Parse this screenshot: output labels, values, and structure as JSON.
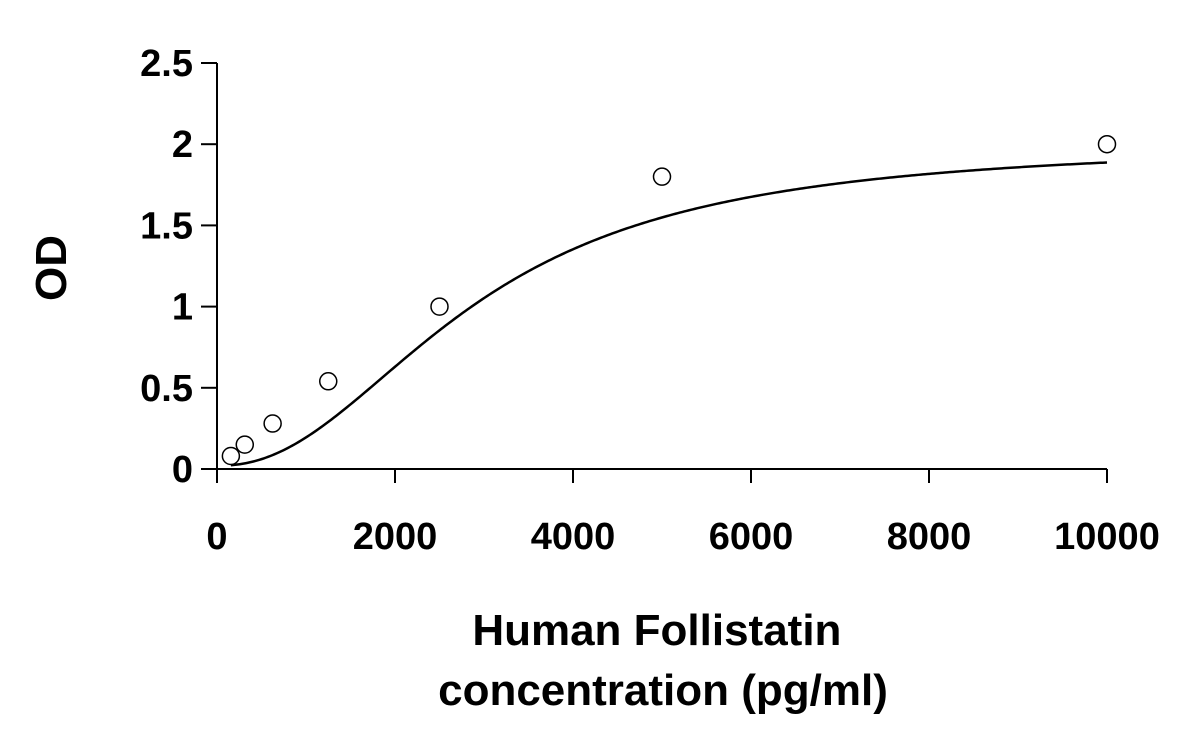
{
  "chart_data": {
    "type": "scatter",
    "title": "",
    "xlabel_lines": [
      "Human Follistatin",
      "concentration (pg/ml)"
    ],
    "ylabel": "OD",
    "xlim": [
      0,
      10000
    ],
    "ylim": [
      0,
      2.5
    ],
    "x_ticks": [
      0,
      2000,
      4000,
      6000,
      8000,
      10000
    ],
    "x_tick_labels": [
      "0",
      "2000",
      "4000",
      "6000",
      "8000",
      "10000"
    ],
    "y_ticks": [
      0,
      0.5,
      1,
      1.5,
      2,
      2.5
    ],
    "y_tick_labels": [
      "0",
      "0.5",
      "1",
      "1.5",
      "2",
      "2.5"
    ],
    "grid": false,
    "legend": false,
    "series": [
      {
        "x": [
          156,
          312,
          625,
          1250,
          2500,
          5000,
          10000
        ],
        "y": [
          0.08,
          0.15,
          0.28,
          0.54,
          1.0,
          1.8,
          2.0
        ],
        "marker": "open-circle",
        "fit_curve": true
      }
    ]
  }
}
